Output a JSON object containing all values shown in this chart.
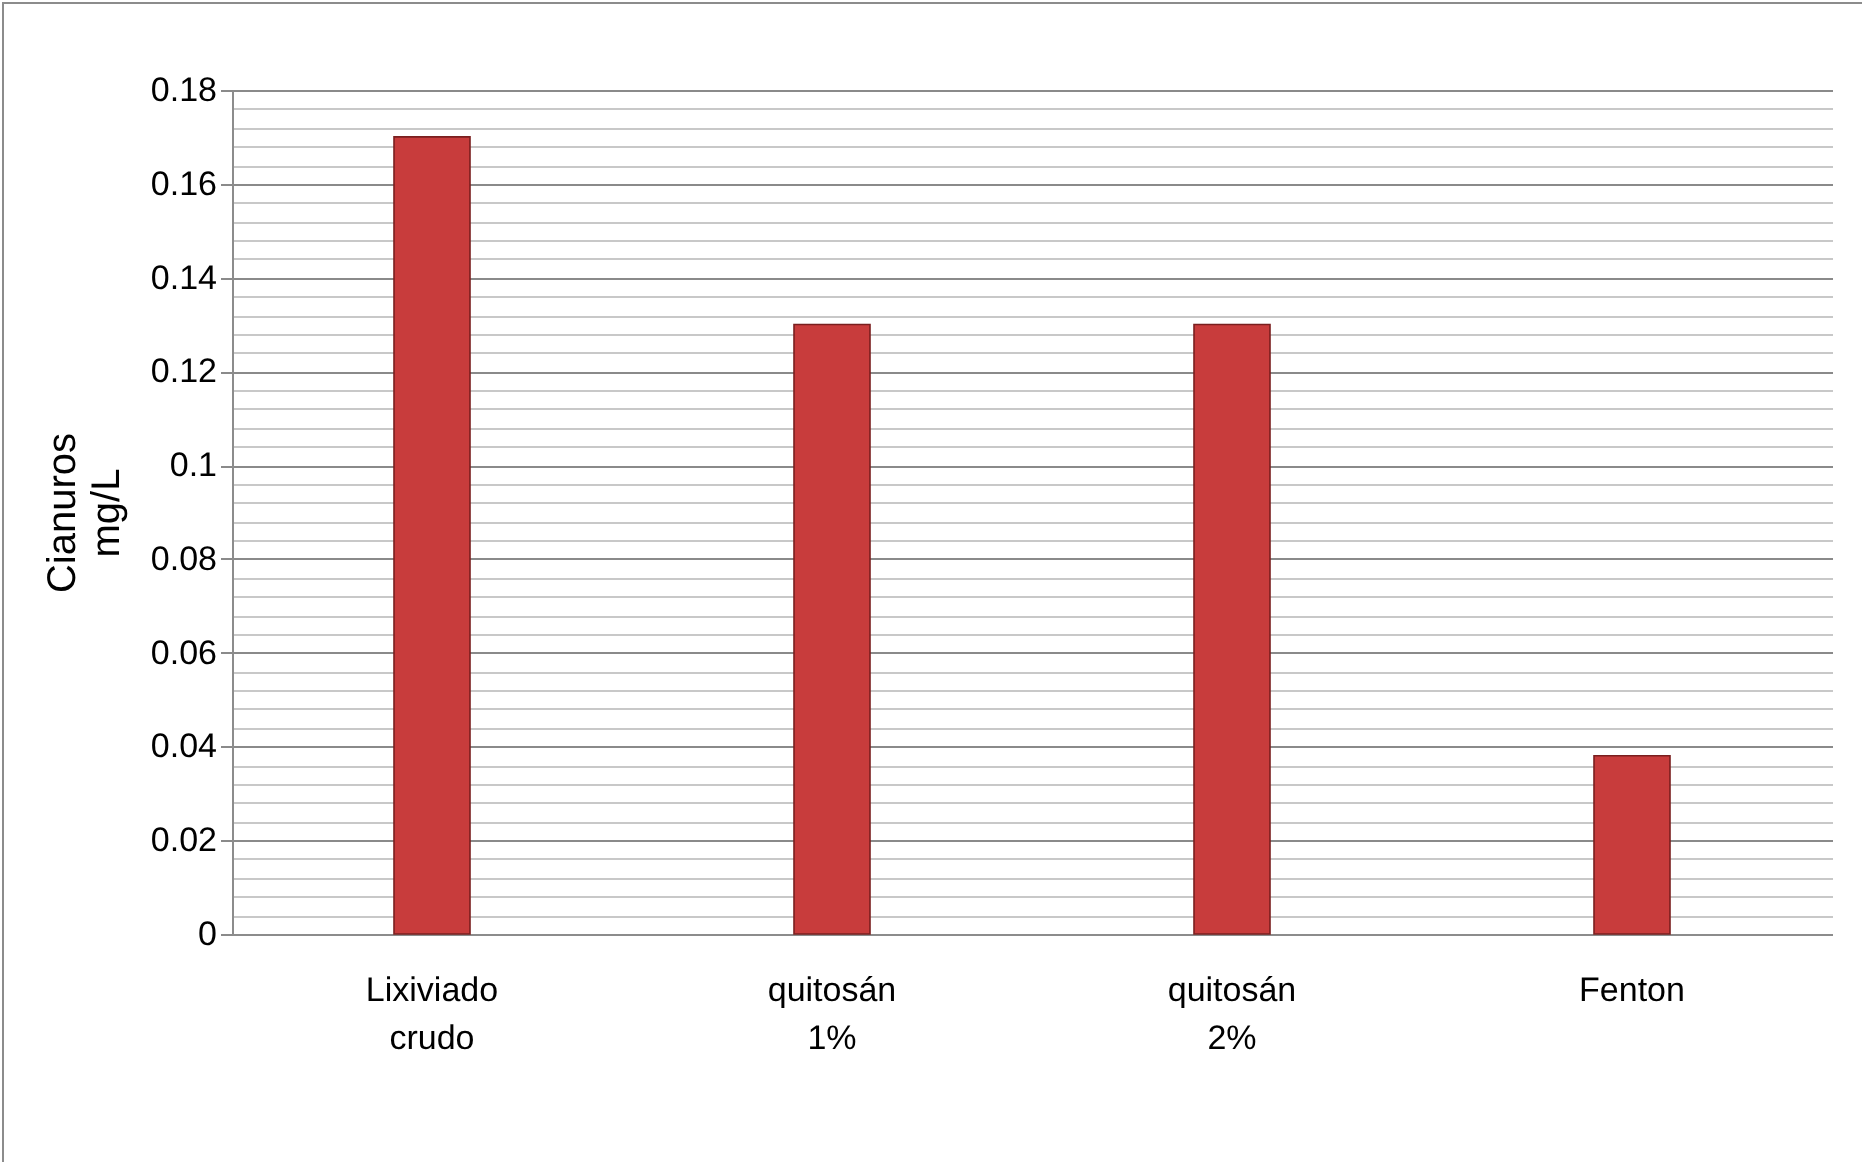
{
  "chart_data": {
    "type": "bar",
    "ylabel": "Cianuros mg/L",
    "categories": [
      "Lixiviado crudo",
      "quitosán 1%",
      "quitosán 2%",
      "Fenton"
    ],
    "values": [
      0.17,
      0.13,
      0.13,
      0.038
    ],
    "color": "#c83c3c",
    "ylim": [
      0,
      0.18
    ],
    "yticks": [
      0,
      {
        "value": 0.004,
        "label": null
      },
      {
        "value": 0.008,
        "label": null
      },
      {
        "value": 0.012,
        "label": null
      },
      {
        "value": 0.016,
        "label": null
      },
      0.02,
      {
        "value": 0.024,
        "label": null
      },
      {
        "value": 0.028,
        "label": null
      },
      {
        "value": 0.032,
        "label": null
      },
      {
        "value": 0.036,
        "label": null
      },
      0.04,
      {
        "value": 0.044,
        "label": null
      },
      {
        "value": 0.048,
        "label": null
      },
      {
        "value": 0.052,
        "label": null
      },
      {
        "value": 0.056,
        "label": null
      },
      0.06,
      {
        "value": 0.064,
        "label": null
      },
      {
        "value": 0.068,
        "label": null
      },
      {
        "value": 0.072,
        "label": null
      },
      {
        "value": 0.076,
        "label": null
      },
      0.08,
      {
        "value": 0.084,
        "label": null
      },
      {
        "value": 0.088,
        "label": null
      },
      {
        "value": 0.092,
        "label": null
      },
      {
        "value": 0.096,
        "label": null
      },
      0.1,
      {
        "value": 0.104,
        "label": null
      },
      {
        "value": 0.108,
        "label": null
      },
      {
        "value": 0.112,
        "label": null
      },
      {
        "value": 0.116,
        "label": null
      },
      0.12,
      {
        "value": 0.124,
        "label": null
      },
      {
        "value": 0.128,
        "label": null
      },
      {
        "value": 0.132,
        "label": null
      },
      {
        "value": 0.136,
        "label": null
      },
      0.14,
      {
        "value": 0.144,
        "label": null
      },
      {
        "value": 0.148,
        "label": null
      },
      {
        "value": 0.152,
        "label": null
      },
      {
        "value": 0.156,
        "label": null
      },
      0.16,
      {
        "value": 0.164,
        "label": null
      },
      {
        "value": 0.168,
        "label": null
      },
      {
        "value": 0.172,
        "label": null
      },
      {
        "value": 0.176,
        "label": null
      },
      0.18
    ],
    "grid": "y"
  }
}
